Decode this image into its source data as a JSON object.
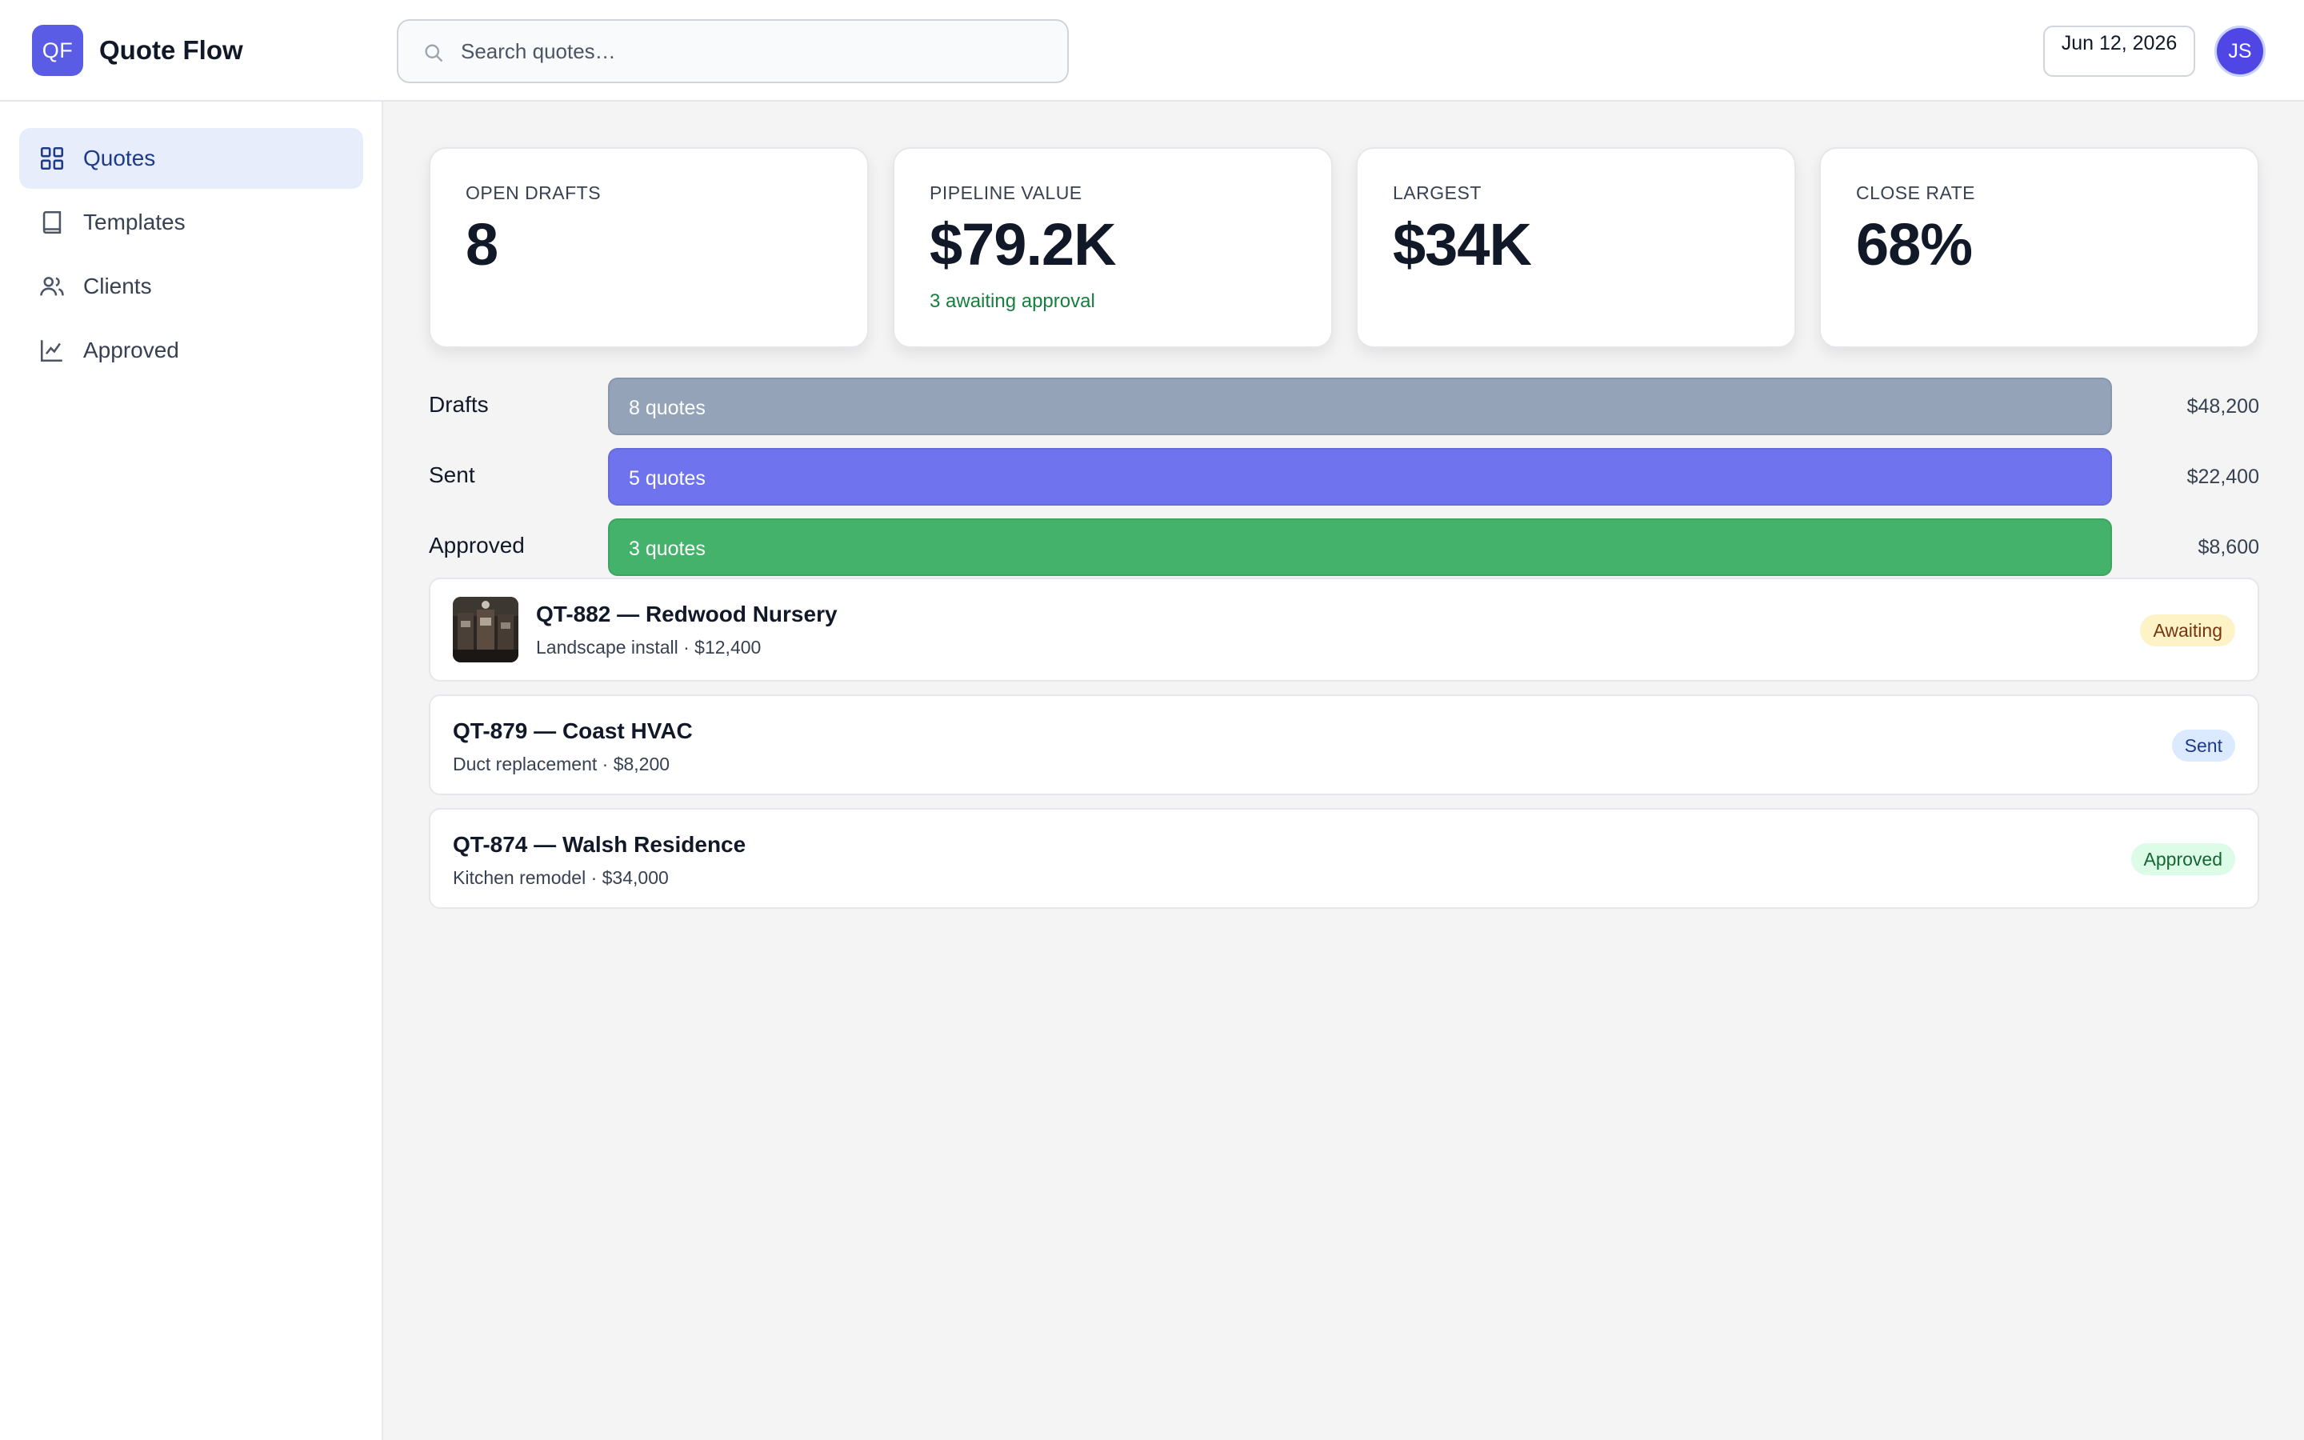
{
  "app": {
    "logo_initials": "QF",
    "title": "Quote Flow"
  },
  "search": {
    "placeholder": "Search quotes…",
    "icon": "search-icon"
  },
  "header": {
    "date": "Jun 12, 2026",
    "avatar_initials": "JS"
  },
  "sidebar": {
    "items": [
      {
        "label": "Quotes",
        "icon": "grid-icon",
        "active": true
      },
      {
        "label": "Templates",
        "icon": "book-icon",
        "active": false
      },
      {
        "label": "Clients",
        "icon": "users-icon",
        "active": false
      },
      {
        "label": "Approved",
        "icon": "chart-line-icon",
        "active": false
      }
    ]
  },
  "stats": [
    {
      "label": "OPEN DRAFTS",
      "value": "8",
      "sub": ""
    },
    {
      "label": "PIPELINE VALUE",
      "value": "$79.2K",
      "sub": "3 awaiting approval"
    },
    {
      "label": "LARGEST",
      "value": "$34K",
      "sub": ""
    },
    {
      "label": "CLOSE RATE",
      "value": "68%",
      "sub": ""
    }
  ],
  "pipeline": [
    {
      "label": "Drafts",
      "count_text": "8 quotes",
      "amount": "$48,200",
      "fill": 1.0,
      "color": "#94a3b8"
    },
    {
      "label": "Sent",
      "count_text": "5 quotes",
      "amount": "$22,400",
      "fill": 1.0,
      "color": "#6f74ee"
    },
    {
      "label": "Approved",
      "count_text": "3 quotes",
      "amount": "$8,600",
      "fill": 1.0,
      "color": "#44b26b"
    }
  ],
  "quotes": [
    {
      "title": "QT-882 — Redwood Nursery",
      "subtitle": "Landscape install · $12,400",
      "status": "Awaiting",
      "has_thumb": true
    },
    {
      "title": "QT-879 — Coast HVAC",
      "subtitle": "Duct replacement · $8,200",
      "status": "Sent",
      "has_thumb": false
    },
    {
      "title": "QT-874 — Walsh Residence",
      "subtitle": "Kitchen remodel · $34,000",
      "status": "Approved",
      "has_thumb": false
    }
  ],
  "colors": {
    "accent": "#5b5ce6",
    "nav_active_bg": "#e8edfc",
    "positive": "#15803d",
    "badge_awaiting_bg": "#fdf3c7",
    "badge_awaiting_fg": "#78350f",
    "badge_sent_bg": "#dbeafe",
    "badge_sent_fg": "#1e3a8a",
    "badge_approved_bg": "#dcfce7",
    "badge_approved_fg": "#166534"
  }
}
